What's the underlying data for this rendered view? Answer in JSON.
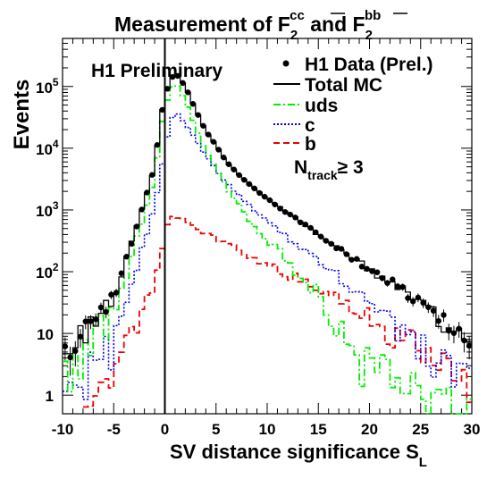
{
  "chart_data": {
    "type": "line",
    "title_parts": {
      "prefix": "Measurement of F",
      "sub1": "2",
      "sup1": "cc",
      "middle": " and F",
      "sub2": "2",
      "sup2": "bb"
    },
    "xlabel": "SV distance significance S",
    "xlabel_sub": "L",
    "ylabel": "Events",
    "annotation": "H1 Preliminary",
    "cut_label": {
      "main": "N",
      "sub": "track",
      "rest": "≥ 3"
    },
    "x_range": [
      -10,
      30
    ],
    "y_range": [
      0.5,
      600000
    ],
    "y_scale": "log",
    "x_ticks": [
      "-10",
      "-5",
      "0",
      "5",
      "10",
      "15",
      "20",
      "25",
      "30"
    ],
    "y_ticks": [
      {
        "value": 1,
        "label": "1"
      },
      {
        "value": 10,
        "label": "10"
      },
      {
        "value": 100,
        "label": "10",
        "exp": "2"
      },
      {
        "value": 1000,
        "label": "10",
        "exp": "3"
      },
      {
        "value": 10000,
        "label": "10",
        "exp": "4"
      },
      {
        "value": 100000,
        "label": "10",
        "exp": "5"
      }
    ],
    "legend_position": "top-right",
    "vertical_line_x": 0,
    "anchors": {
      "total": [
        [
          -10,
          4.5
        ],
        [
          -8,
          10
        ],
        [
          -5,
          40
        ],
        [
          -3,
          400
        ],
        [
          -1,
          5000
        ],
        [
          -0.5,
          25000
        ],
        [
          0,
          70000
        ],
        [
          0.5,
          120000
        ],
        [
          1,
          170000
        ],
        [
          2,
          100000
        ],
        [
          3,
          42000
        ],
        [
          4,
          19000
        ],
        [
          5,
          11000
        ],
        [
          6,
          6000
        ],
        [
          8,
          2800
        ],
        [
          10,
          1500
        ],
        [
          12,
          900
        ],
        [
          15,
          400
        ],
        [
          18,
          180
        ],
        [
          20,
          110
        ],
        [
          22,
          70
        ],
        [
          25,
          30
        ],
        [
          28,
          12
        ],
        [
          30,
          6
        ]
      ],
      "uds": [
        [
          -10,
          2.2
        ],
        [
          -8,
          4.5
        ],
        [
          -5,
          20
        ],
        [
          -3,
          250
        ],
        [
          -1,
          3000
        ],
        [
          -0.5,
          16000
        ],
        [
          0,
          45000
        ],
        [
          0.5,
          80000
        ],
        [
          1,
          120000
        ],
        [
          2,
          60000
        ],
        [
          3,
          22000
        ],
        [
          4,
          9000
        ],
        [
          5,
          4500
        ],
        [
          6,
          2400
        ],
        [
          8,
          800
        ],
        [
          10,
          330
        ],
        [
          12,
          150
        ],
        [
          15,
          45
        ],
        [
          18,
          12
        ],
        [
          20,
          5
        ],
        [
          22,
          2.5
        ],
        [
          25,
          1.2
        ],
        [
          28,
          0.7
        ],
        [
          30,
          0.6
        ]
      ],
      "c": [
        [
          -10,
          0.9
        ],
        [
          -8,
          2.5
        ],
        [
          -5,
          8
        ],
        [
          -3,
          80
        ],
        [
          -1,
          1200
        ],
        [
          0,
          9000
        ],
        [
          0.5,
          25000
        ],
        [
          1,
          40000
        ],
        [
          2,
          25000
        ],
        [
          3,
          14000
        ],
        [
          4,
          7500
        ],
        [
          5,
          4500
        ],
        [
          6,
          2800
        ],
        [
          8,
          1300
        ],
        [
          10,
          650
        ],
        [
          12,
          350
        ],
        [
          15,
          150
        ],
        [
          18,
          60
        ],
        [
          20,
          35
        ],
        [
          22,
          18
        ],
        [
          25,
          8
        ],
        [
          28,
          3.5
        ],
        [
          30,
          2
        ]
      ],
      "b": [
        [
          -8,
          0.7
        ],
        [
          -6,
          1.5
        ],
        [
          -5,
          3
        ],
        [
          -3,
          12
        ],
        [
          -1.5,
          40
        ],
        [
          -0.5,
          120
        ],
        [
          0,
          400
        ],
        [
          0.5,
          850
        ],
        [
          1,
          800
        ],
        [
          2,
          650
        ],
        [
          3,
          520
        ],
        [
          5,
          350
        ],
        [
          7,
          230
        ],
        [
          10,
          130
        ],
        [
          12,
          90
        ],
        [
          15,
          55
        ],
        [
          18,
          30
        ],
        [
          20,
          18
        ],
        [
          22,
          12
        ],
        [
          25,
          6
        ],
        [
          28,
          3
        ],
        [
          30,
          1.5
        ]
      ]
    },
    "series": [
      {
        "name": "H1 Data (Prel.)",
        "style": "points",
        "color": "#000000"
      },
      {
        "name": "Total MC",
        "style": "solid",
        "color": "#000000"
      },
      {
        "name": "uds",
        "style": "dash-dot",
        "color": "#00ee00"
      },
      {
        "name": "c",
        "style": "dotted",
        "color": "#0000ee"
      },
      {
        "name": "b",
        "style": "dashed",
        "color": "#ee0000"
      }
    ]
  }
}
